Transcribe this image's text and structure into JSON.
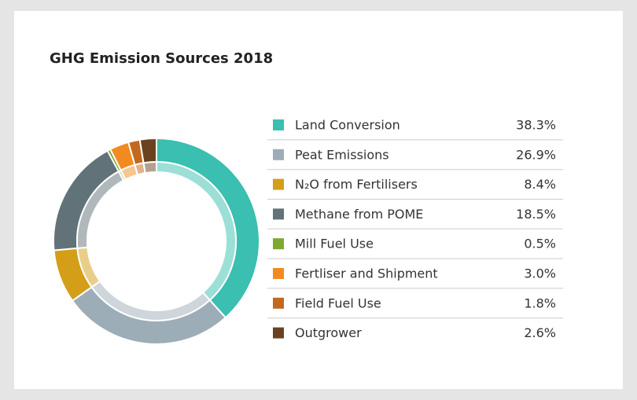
{
  "chart_data": {
    "type": "donut",
    "title": "GHG Emission Sources 2018",
    "categories": [
      "Land Conversion",
      "Peat Emissions",
      "N₂O from Fertilisers",
      "Methane from POME",
      "Mill Fuel Use",
      "Fertliser and Shipment",
      "Field Fuel Use",
      "Outgrower"
    ],
    "values": [
      38.3,
      26.9,
      8.4,
      18.5,
      0.5,
      3.0,
      1.8,
      2.6
    ],
    "value_labels": [
      "38.3%",
      "26.9%",
      "8.4%",
      "18.5%",
      "0.5%",
      "3.0%",
      "1.8%",
      "2.6%"
    ],
    "colors": [
      "#3abfb0",
      "#9dadb7",
      "#d49e18",
      "#627279",
      "#7ea82e",
      "#f38a21",
      "#c2691f",
      "#6b4220"
    ],
    "legend": "right"
  }
}
